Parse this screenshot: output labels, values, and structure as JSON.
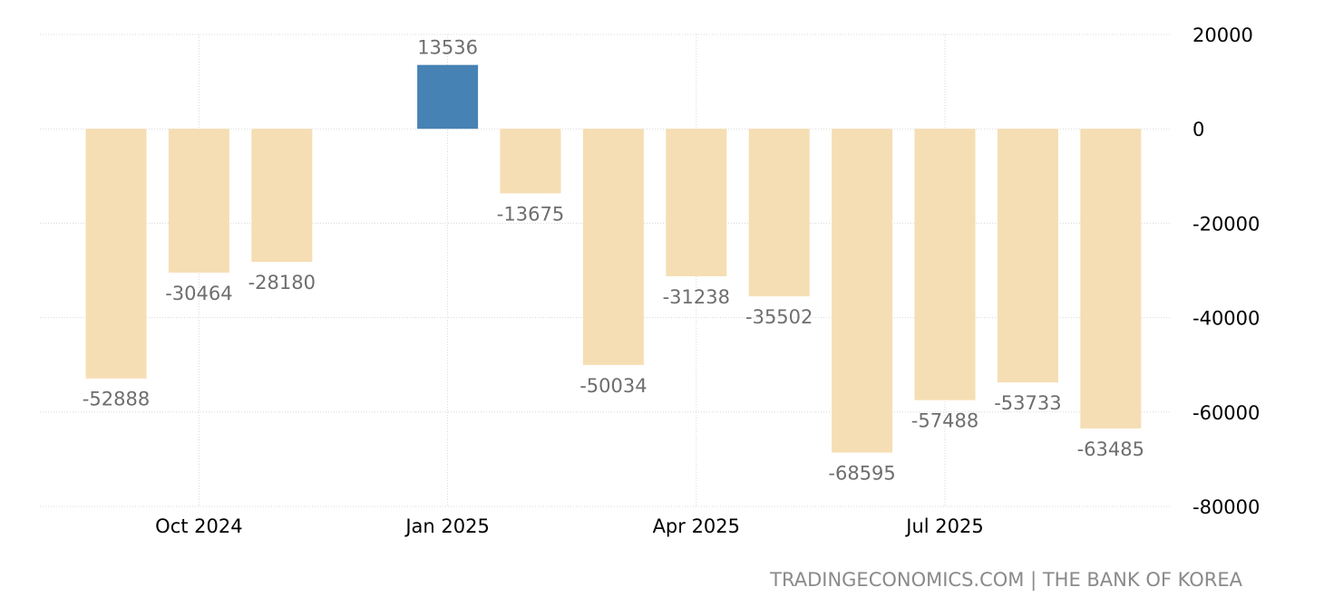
{
  "footer": {
    "source_text": "TRADINGECONOMICS.COM | THE BANK OF KOREA"
  },
  "colors": {
    "positive_bar": "#4682b4",
    "negative_bar": "#f5deb3",
    "grid": "#d9d9d9",
    "data_label": "#6e6e6e",
    "tick_label": "#000000",
    "footer": "#8a8a8a"
  },
  "chart_data": {
    "type": "bar",
    "title": "",
    "xlabel": "",
    "ylabel": "",
    "categories": [
      "2024-09",
      "2024-10",
      "2024-11",
      "2024-12",
      "2025-01",
      "2025-02",
      "2025-03",
      "2025-04",
      "2025-05",
      "2025-06",
      "2025-07",
      "2025-08",
      "2025-09"
    ],
    "values": [
      -52888,
      -30464,
      -28180,
      null,
      13536,
      -13675,
      -50034,
      -31238,
      -35502,
      -68595,
      -57488,
      -53733,
      -63485
    ],
    "data_labels": [
      "-52888",
      "-30464",
      "-28180",
      "",
      "13536",
      "-13675",
      "-50034",
      "-31238",
      "-35502",
      "-68595",
      "-57488",
      "-53733",
      "-63485"
    ],
    "x_ticks": [
      {
        "category": "2024-10",
        "label": "Oct 2024"
      },
      {
        "category": "2025-01",
        "label": "Jan 2025"
      },
      {
        "category": "2025-04",
        "label": "Apr 2025"
      },
      {
        "category": "2025-07",
        "label": "Jul 2025"
      }
    ],
    "y_ticks": [
      20000,
      0,
      -20000,
      -40000,
      -60000,
      -80000
    ],
    "ylim": [
      -80000,
      20000
    ],
    "y_axis_position": "right",
    "grid": true,
    "legend": "none"
  }
}
